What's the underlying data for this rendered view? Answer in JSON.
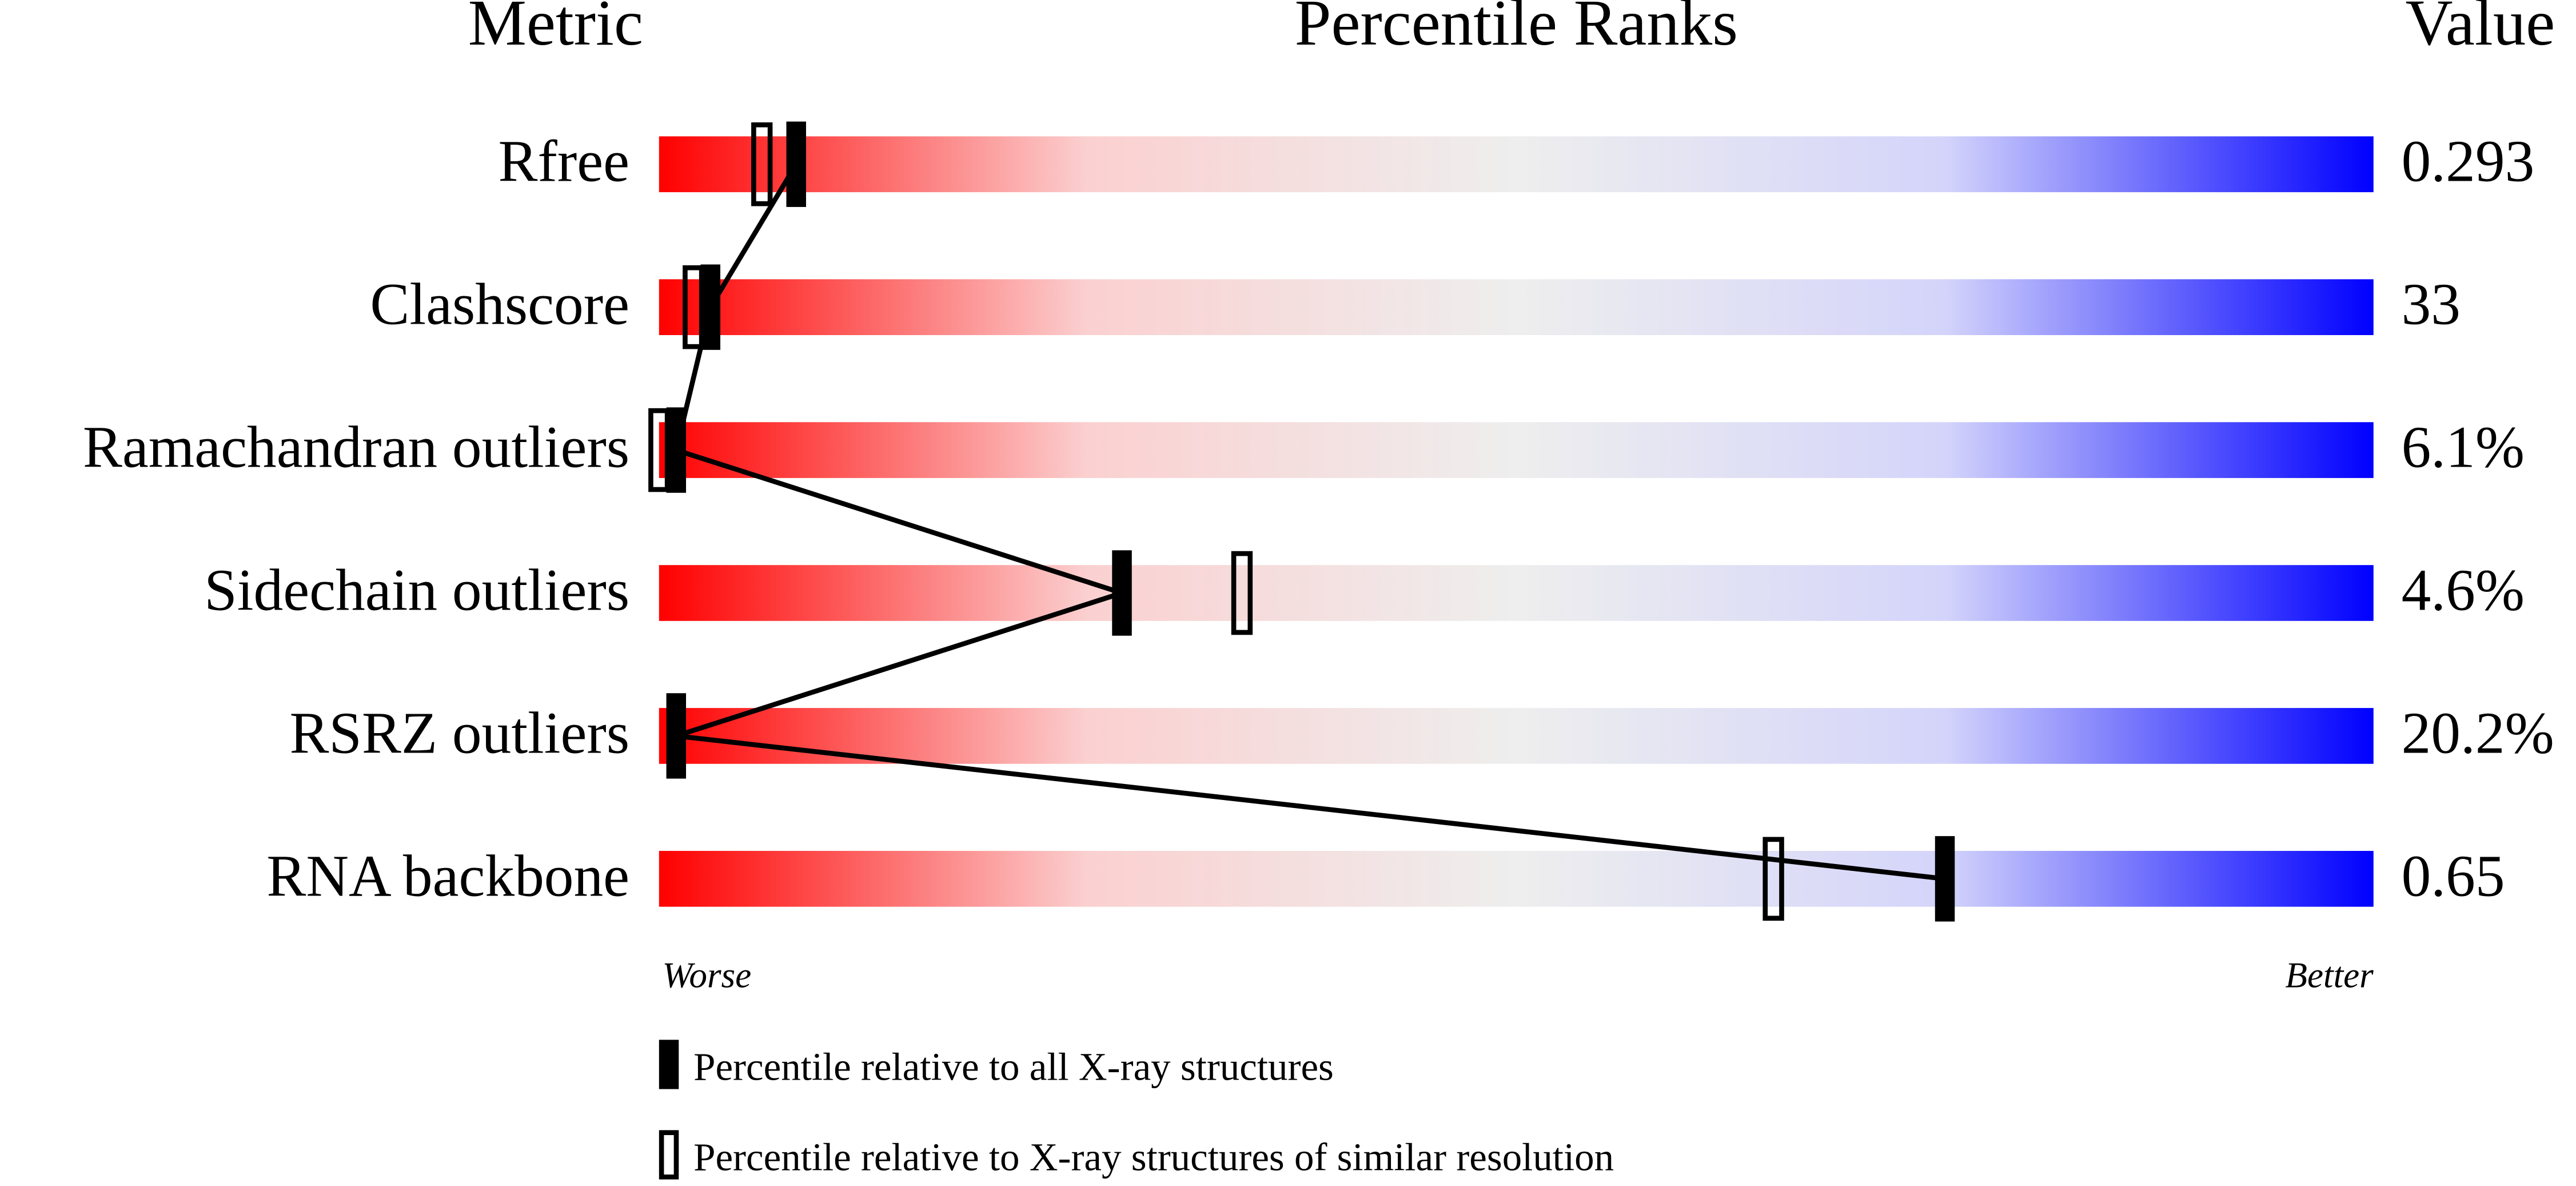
{
  "chart_data": {
    "type": "slider",
    "headers": {
      "metric": "Metric",
      "ranks": "Percentile Ranks",
      "value": "Value"
    },
    "categories": [
      "Rfree",
      "Clashscore",
      "Ramachandran outliers",
      "Sidechain outliers",
      "RSRZ outliers",
      "RNA backbone"
    ],
    "metric_values": [
      "0.293",
      "33",
      "6.1%",
      "4.6%",
      "20.2%",
      "0.65"
    ],
    "series": [
      {
        "name": "Percentile relative to all X-ray structures",
        "color": "#000000",
        "style": "filled",
        "values": [
          8,
          3,
          1,
          27,
          1,
          75
        ]
      },
      {
        "name": "Percentile relative to X-ray structures of similar resolution",
        "color": "#000000",
        "style": "open",
        "values": [
          6,
          2,
          0,
          34,
          null,
          65
        ]
      }
    ],
    "xlim": [
      0,
      100
    ],
    "axis_labels": {
      "low": "Worse",
      "high": "Better"
    },
    "gradient": [
      "#ff0000",
      "#fbd0d0",
      "#eeeeee",
      "#d4d4fb",
      "#0000ff"
    ]
  }
}
